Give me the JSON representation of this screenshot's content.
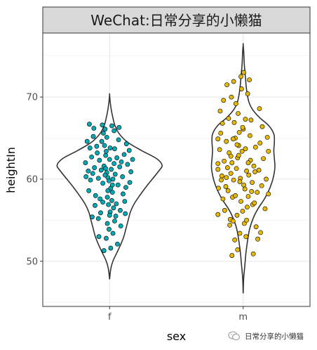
{
  "chart_data": {
    "type": "violin",
    "title": "WeChat:日常分享的小懒猫",
    "xlabel": "sex",
    "ylabel": "heightIn",
    "categories": [
      "f",
      "m"
    ],
    "ylim": [
      44.5,
      77.8
    ],
    "yticks": [
      50,
      60,
      70
    ],
    "grid": true,
    "series": [
      {
        "category": "f",
        "color": "#00A9B4",
        "range": [
          47.8,
          70.3
        ],
        "density": [
          [
            47.8,
            0.0
          ],
          [
            49.0,
            0.02
          ],
          [
            50.0,
            0.06
          ],
          [
            51.0,
            0.13
          ],
          [
            52.0,
            0.2
          ],
          [
            53.0,
            0.26
          ],
          [
            54.0,
            0.3
          ],
          [
            55.0,
            0.34
          ],
          [
            56.0,
            0.38
          ],
          [
            57.0,
            0.45
          ],
          [
            58.0,
            0.55
          ],
          [
            59.0,
            0.66
          ],
          [
            60.0,
            0.78
          ],
          [
            61.0,
            0.9
          ],
          [
            61.7,
            0.96
          ],
          [
            62.5,
            0.86
          ],
          [
            63.5,
            0.58
          ],
          [
            64.5,
            0.33
          ],
          [
            65.5,
            0.18
          ],
          [
            66.5,
            0.1
          ],
          [
            67.5,
            0.06
          ],
          [
            68.5,
            0.03
          ],
          [
            69.5,
            0.01
          ],
          [
            70.3,
            0.0
          ]
        ],
        "points": [
          [
            61.7,
            60.2
          ],
          [
            61.5,
            60.8
          ],
          [
            61.9,
            59.8
          ],
          [
            62.3,
            61.2
          ],
          [
            61.2,
            60.5
          ],
          [
            62.6,
            60.0
          ],
          [
            61.0,
            61.6
          ],
          [
            62.0,
            62.4
          ],
          [
            60.8,
            59.5
          ],
          [
            62.8,
            61.9
          ],
          [
            61.3,
            62.9
          ],
          [
            62.2,
            58.9
          ],
          [
            60.5,
            61.1
          ],
          [
            63.0,
            60.6
          ],
          [
            61.4,
            63.4
          ],
          [
            62.5,
            58.4
          ],
          [
            60.2,
            62.3
          ],
          [
            63.3,
            62.6
          ],
          [
            61.6,
            57.8
          ],
          [
            62.9,
            63.7
          ],
          [
            60.0,
            60.1
          ],
          [
            63.5,
            59.3
          ],
          [
            61.1,
            64.1
          ],
          [
            62.4,
            57.4
          ],
          [
            59.8,
            63.2
          ],
          [
            63.8,
            61.5
          ],
          [
            61.8,
            56.9
          ],
          [
            60.6,
            64.6
          ],
          [
            62.7,
            56.5
          ],
          [
            59.5,
            58.0
          ],
          [
            64.1,
            62.1
          ],
          [
            61.5,
            65.1
          ],
          [
            62.1,
            56.0
          ],
          [
            59.3,
            61.4
          ],
          [
            64.3,
            60.3
          ],
          [
            60.9,
            65.6
          ],
          [
            63.2,
            57.0
          ],
          [
            59.0,
            60.7
          ],
          [
            64.6,
            63.0
          ],
          [
            62.0,
            55.6
          ],
          [
            60.3,
            57.6
          ],
          [
            63.6,
            64.8
          ],
          [
            58.8,
            62.7
          ],
          [
            61.2,
            66.1
          ],
          [
            64.9,
            59.0
          ],
          [
            60.0,
            55.2
          ],
          [
            62.8,
            65.9
          ],
          [
            58.6,
            59.9
          ],
          [
            63.9,
            56.2
          ],
          [
            59.7,
            64.0
          ],
          [
            65.2,
            61.8
          ],
          [
            61.6,
            54.6
          ],
          [
            58.5,
            63.8
          ],
          [
            62.4,
            66.5
          ],
          [
            64.4,
            58.2
          ],
          [
            60.4,
            55.9
          ],
          [
            58.3,
            58.6
          ],
          [
            65.5,
            63.5
          ],
          [
            61.9,
            53.9
          ],
          [
            59.1,
            65.2
          ],
          [
            63.1,
            55.5
          ],
          [
            58.2,
            61.0
          ],
          [
            64.7,
            57.3
          ],
          [
            60.7,
            66.6
          ],
          [
            62.6,
            53.4
          ],
          [
            65.8,
            60.9
          ],
          [
            58.0,
            64.6
          ],
          [
            61.4,
            52.8
          ],
          [
            63.7,
            66.3
          ],
          [
            59.4,
            56.8
          ],
          [
            64.0,
            54.3
          ],
          [
            57.8,
            60.3
          ],
          [
            62.2,
            51.6
          ],
          [
            60.1,
            53.0
          ],
          [
            65.0,
            64.3
          ],
          [
            58.9,
            55.4
          ],
          [
            63.4,
            52.1
          ],
          [
            61.0,
            51.3
          ],
          [
            66.1,
            62.4
          ],
          [
            57.7,
            62.0
          ],
          [
            59.2,
            66.2
          ],
          [
            64.8,
            55.8
          ],
          [
            62.9,
            54.9
          ],
          [
            60.8,
            57.2
          ],
          [
            58.4,
            66.7
          ],
          [
            65.6,
            59.6
          ],
          [
            61.7,
            58.6
          ],
          [
            62.5,
            59.3
          ],
          [
            61.3,
            61.3
          ],
          [
            62.1,
            63.8
          ]
        ]
      },
      {
        "category": "m",
        "color": "#E7B800",
        "range": [
          46.1,
          76.4
        ],
        "density": [
          [
            46.1,
            0.0
          ],
          [
            48.0,
            0.01
          ],
          [
            49.5,
            0.03
          ],
          [
            51.0,
            0.05
          ],
          [
            52.5,
            0.08
          ],
          [
            54.0,
            0.12
          ],
          [
            55.5,
            0.2
          ],
          [
            56.5,
            0.28
          ],
          [
            57.5,
            0.38
          ],
          [
            58.5,
            0.46
          ],
          [
            59.5,
            0.52
          ],
          [
            60.5,
            0.56
          ],
          [
            61.5,
            0.58
          ],
          [
            62.5,
            0.57
          ],
          [
            63.5,
            0.56
          ],
          [
            64.5,
            0.57
          ],
          [
            65.5,
            0.56
          ],
          [
            66.5,
            0.47
          ],
          [
            67.5,
            0.3
          ],
          [
            68.5,
            0.17
          ],
          [
            69.5,
            0.1
          ],
          [
            71.0,
            0.06
          ],
          [
            72.5,
            0.04
          ],
          [
            74.0,
            0.02
          ],
          [
            75.5,
            0.01
          ],
          [
            76.4,
            0.0
          ]
        ],
        "points": [
          [
            63.5,
            60.1
          ],
          [
            62.8,
            61.3
          ],
          [
            64.1,
            59.3
          ],
          [
            63.0,
            62.6
          ],
          [
            64.6,
            61.0
          ],
          [
            62.3,
            59.9
          ],
          [
            63.8,
            63.4
          ],
          [
            65.0,
            60.5
          ],
          [
            62.0,
            62.0
          ],
          [
            64.3,
            58.8
          ],
          [
            63.2,
            64.1
          ],
          [
            65.3,
            62.3
          ],
          [
            61.8,
            60.7
          ],
          [
            64.9,
            57.9
          ],
          [
            62.6,
            65.0
          ],
          [
            65.6,
            59.6
          ],
          [
            61.5,
            63.2
          ],
          [
            63.6,
            57.3
          ],
          [
            64.0,
            66.1
          ],
          [
            62.1,
            57.8
          ],
          [
            65.9,
            61.6
          ],
          [
            61.2,
            61.4
          ],
          [
            63.3,
            65.7
          ],
          [
            66.2,
            63.9
          ],
          [
            60.9,
            59.1
          ],
          [
            64.7,
            56.6
          ],
          [
            62.4,
            66.9
          ],
          [
            66.5,
            58.4
          ],
          [
            61.0,
            64.6
          ],
          [
            63.9,
            56.1
          ],
          [
            60.6,
            62.2
          ],
          [
            65.2,
            65.3
          ],
          [
            62.9,
            55.6
          ],
          [
            66.8,
            61.1
          ],
          [
            60.4,
            57.6
          ],
          [
            64.4,
            67.3
          ],
          [
            61.7,
            55.1
          ],
          [
            67.0,
            64.4
          ],
          [
            60.2,
            60.4
          ],
          [
            63.1,
            68.0
          ],
          [
            65.7,
            56.9
          ],
          [
            62.2,
            54.9
          ],
          [
            67.3,
            59.2
          ],
          [
            60.0,
            65.6
          ],
          [
            64.2,
            54.6
          ],
          [
            61.4,
            67.4
          ],
          [
            66.0,
            57.1
          ],
          [
            59.8,
            63.6
          ],
          [
            63.4,
            53.4
          ],
          [
            67.6,
            62.5
          ],
          [
            62.7,
            69.2
          ],
          [
            60.7,
            56.2
          ],
          [
            65.4,
            67.2
          ],
          [
            59.6,
            58.9
          ],
          [
            64.5,
            53.0
          ],
          [
            61.9,
            70.0
          ],
          [
            67.9,
            56.4
          ],
          [
            59.5,
            61.9
          ],
          [
            63.7,
            71.0
          ],
          [
            66.3,
            54.2
          ],
          [
            62.5,
            52.6
          ],
          [
            60.3,
            66.8
          ],
          [
            68.1,
            60.0
          ],
          [
            64.8,
            70.4
          ],
          [
            59.4,
            55.7
          ],
          [
            66.6,
            52.7
          ],
          [
            61.1,
            71.5
          ],
          [
            68.3,
            65.1
          ],
          [
            63.0,
            51.4
          ],
          [
            59.3,
            64.9
          ],
          [
            65.1,
            72.1
          ],
          [
            67.1,
            53.5
          ],
          [
            60.5,
            69.6
          ],
          [
            68.5,
            58.2
          ],
          [
            62.0,
            50.7
          ],
          [
            64.1,
            73.0
          ],
          [
            59.1,
            61.2
          ],
          [
            66.9,
            68.6
          ],
          [
            61.6,
            54.4
          ],
          [
            68.7,
            63.4
          ],
          [
            63.6,
            72.5
          ],
          [
            60.1,
            59.9
          ],
          [
            65.8,
            50.9
          ],
          [
            62.3,
            71.9
          ],
          [
            67.4,
            66.4
          ],
          [
            59.9,
            68.3
          ],
          [
            64.6,
            55.0
          ],
          [
            61.3,
            58.6
          ],
          [
            66.1,
            60.9
          ],
          [
            63.2,
            62.9
          ],
          [
            64.4,
            63.7
          ],
          [
            62.6,
            58.0
          ],
          [
            65.5,
            58.5
          ],
          [
            61.0,
            60.2
          ],
          [
            63.9,
            66.3
          ],
          [
            62.9,
            64.2
          ],
          [
            64.9,
            62.0
          ],
          [
            61.8,
            62.8
          ],
          [
            63.4,
            59.7
          ],
          [
            62.2,
            64.9
          ]
        ]
      }
    ]
  },
  "watermark": {
    "text": "日常分享的小懒猫",
    "icon": "wechat-icon"
  }
}
